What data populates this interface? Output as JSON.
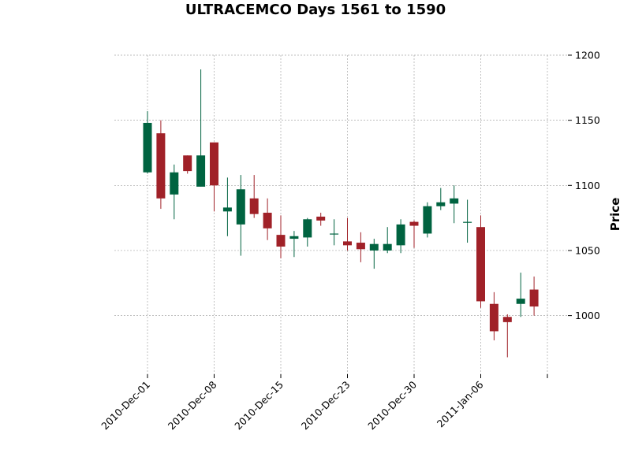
{
  "chart_data": {
    "type": "candlestick",
    "title": "ULTRACEMCO Days 1561 to 1590",
    "ylabel": "Price",
    "ylim": [
      955,
      1200
    ],
    "yticks": [
      1000,
      1050,
      1100,
      1150,
      1200
    ],
    "xtick_labels": [
      {
        "index": 0,
        "label": "2010-Dec-01"
      },
      {
        "index": 5,
        "label": "2010-Dec-08"
      },
      {
        "index": 10,
        "label": "2010-Dec-15"
      },
      {
        "index": 15,
        "label": "2010-Dec-23"
      },
      {
        "index": 20,
        "label": "2010-Dec-30"
      },
      {
        "index": 25,
        "label": "2011-Jan-06"
      },
      {
        "index": 30,
        "label": ""
      }
    ],
    "grid": true,
    "colors": {
      "up": "#006340",
      "down": "#a02128"
    },
    "candles": [
      {
        "open": 1110,
        "high": 1157,
        "low": 1109,
        "close": 1148
      },
      {
        "open": 1140,
        "high": 1150,
        "low": 1082,
        "close": 1090
      },
      {
        "open": 1093,
        "high": 1116,
        "low": 1074,
        "close": 1110
      },
      {
        "open": 1123,
        "high": 1123,
        "low": 1109,
        "close": 1111
      },
      {
        "open": 1099,
        "high": 1189,
        "low": 1099,
        "close": 1123
      },
      {
        "open": 1133,
        "high": 1133,
        "low": 1080,
        "close": 1100
      },
      {
        "open": 1080,
        "high": 1106,
        "low": 1061,
        "close": 1083
      },
      {
        "open": 1070,
        "high": 1108,
        "low": 1046,
        "close": 1097
      },
      {
        "open": 1090,
        "high": 1108,
        "low": 1075,
        "close": 1078
      },
      {
        "open": 1079,
        "high": 1090,
        "low": 1058,
        "close": 1067
      },
      {
        "open": 1062,
        "high": 1077,
        "low": 1044,
        "close": 1053
      },
      {
        "open": 1059,
        "high": 1065,
        "low": 1045,
        "close": 1061
      },
      {
        "open": 1060,
        "high": 1075,
        "low": 1053,
        "close": 1074
      },
      {
        "open": 1076,
        "high": 1079,
        "low": 1069,
        "close": 1073
      },
      {
        "open": 1063,
        "high": 1074,
        "low": 1054,
        "close": 1063
      },
      {
        "open": 1057,
        "high": 1075,
        "low": 1050,
        "close": 1054
      },
      {
        "open": 1056,
        "high": 1064,
        "low": 1041,
        "close": 1051
      },
      {
        "open": 1050,
        "high": 1059,
        "low": 1036,
        "close": 1055
      },
      {
        "open": 1050,
        "high": 1068,
        "low": 1048,
        "close": 1055
      },
      {
        "open": 1054,
        "high": 1074,
        "low": 1048,
        "close": 1070
      },
      {
        "open": 1072,
        "high": 1073,
        "low": 1052,
        "close": 1069
      },
      {
        "open": 1063,
        "high": 1087,
        "low": 1060,
        "close": 1084
      },
      {
        "open": 1084,
        "high": 1098,
        "low": 1081,
        "close": 1087
      },
      {
        "open": 1086,
        "high": 1100,
        "low": 1071,
        "close": 1090
      },
      {
        "open": 1072,
        "high": 1089,
        "low": 1056,
        "close": 1072
      },
      {
        "open": 1068,
        "high": 1077,
        "low": 1006,
        "close": 1011
      },
      {
        "open": 1009,
        "high": 1018,
        "low": 981,
        "close": 988
      },
      {
        "open": 999,
        "high": 1001,
        "low": 968,
        "close": 995
      },
      {
        "open": 1009,
        "high": 1033,
        "low": 999,
        "close": 1013
      },
      {
        "open": 1020,
        "high": 1030,
        "low": 1000,
        "close": 1007
      }
    ]
  }
}
